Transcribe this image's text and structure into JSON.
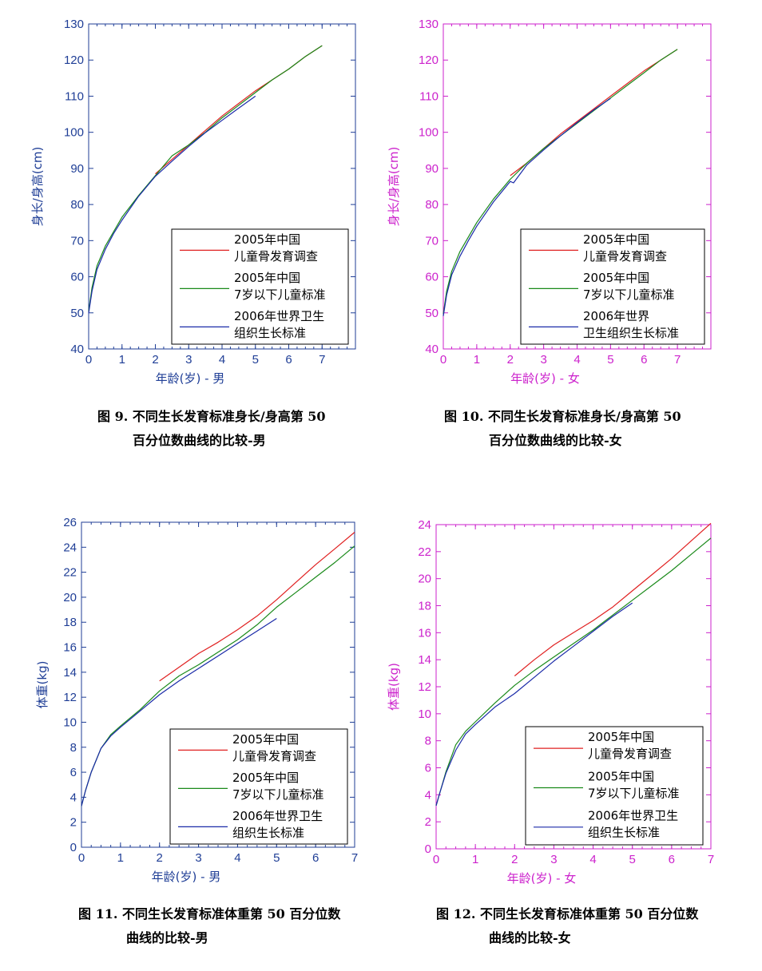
{
  "colors": {
    "red": "#e02020",
    "green": "#1a8a1a",
    "blue": "#1a2aa8",
    "male_axis": "#1f3e96",
    "female_axis": "#cc22cc"
  },
  "chart_data": [
    {
      "type": "line",
      "gender": "male",
      "ylabel": "身长/身高(cm)",
      "xlabel": "年龄(岁) - 男",
      "xlim": [
        0,
        8
      ],
      "ylim": [
        40,
        130
      ],
      "xticks": [
        0,
        1,
        2,
        3,
        4,
        5,
        6,
        7
      ],
      "yticks": [
        40,
        50,
        60,
        70,
        80,
        90,
        100,
        110,
        120,
        130
      ],
      "caption": [
        "图 9. 不同生长发育标准身长/身高第 50",
        "百分位数曲线的比较-男"
      ],
      "legend": [
        [
          "2005年中国",
          "儿童骨发育调查"
        ],
        [
          "2005年中国",
          "7岁以下儿童标准"
        ],
        [
          "2006年世界卫生",
          "组织生长标准"
        ]
      ],
      "series": [
        {
          "color": "red",
          "x": [
            2,
            2.5,
            3,
            3.5,
            4,
            4.5,
            5,
            5.5,
            6,
            6.5,
            7
          ],
          "y": [
            88.5,
            92.5,
            96.5,
            100.5,
            104.5,
            108,
            111.5,
            114.5,
            117.5,
            121,
            124
          ]
        },
        {
          "color": "green",
          "x": [
            0,
            0.1,
            0.25,
            0.5,
            0.75,
            1,
            1.5,
            2,
            2.5,
            3,
            3.5,
            4,
            4.5,
            5,
            5.5,
            6,
            6.5,
            7
          ],
          "y": [
            50.4,
            57,
            63,
            68.5,
            72.5,
            76.5,
            82.5,
            88,
            93.5,
            96.5,
            100,
            104,
            107.5,
            111,
            114.5,
            117.5,
            121,
            124
          ]
        },
        {
          "color": "blue",
          "x": [
            0,
            0.1,
            0.25,
            0.5,
            0.75,
            1,
            1.5,
            2,
            2.5,
            3,
            3.5,
            4,
            4.5,
            5
          ],
          "y": [
            49.9,
            56,
            62,
            67.6,
            72,
            75.7,
            82.3,
            87.8,
            92,
            96.1,
            99.9,
            103.3,
            106.7,
            110
          ]
        }
      ]
    },
    {
      "type": "line",
      "gender": "female",
      "ylabel": "身长/身高(cm)",
      "xlabel": "年龄(岁) - 女",
      "xlim": [
        0,
        8
      ],
      "ylim": [
        40,
        130
      ],
      "xticks": [
        0,
        1,
        2,
        3,
        4,
        5,
        6,
        7
      ],
      "yticks": [
        40,
        50,
        60,
        70,
        80,
        90,
        100,
        110,
        120,
        130
      ],
      "caption": [
        "图 10. 不同生长发育标准身长/身高第 50",
        "百分位数曲线的比较-女"
      ],
      "legend": [
        [
          "2005年中国",
          "儿童骨发育调查"
        ],
        [
          "2005年中国",
          "7岁以下儿童标准"
        ],
        [
          "2006年世界",
          "卫生组织生长标准"
        ]
      ],
      "series": [
        {
          "color": "red",
          "x": [
            2,
            2.5,
            3,
            3.5,
            4,
            4.5,
            5,
            5.5,
            6,
            6.5,
            7
          ],
          "y": [
            88,
            91.5,
            95.5,
            99.5,
            103,
            106.5,
            110,
            113.5,
            117,
            120,
            123
          ]
        },
        {
          "color": "green",
          "x": [
            0,
            0.1,
            0.25,
            0.5,
            0.75,
            1,
            1.5,
            2,
            2.5,
            3,
            3.5,
            4,
            4.5,
            5,
            5.5,
            6,
            6.5,
            7
          ],
          "y": [
            49.7,
            56,
            61.5,
            67,
            71,
            75,
            81.5,
            87,
            91.5,
            95.5,
            99,
            102.5,
            106,
            109.5,
            113,
            116.5,
            120,
            123
          ]
        },
        {
          "color": "blue",
          "x": [
            0,
            0.1,
            0.25,
            0.5,
            0.75,
            1,
            1.5,
            2,
            2.1,
            2.5,
            3,
            3.5,
            4,
            4.5,
            5
          ],
          "y": [
            49.1,
            55,
            60.5,
            65.7,
            70,
            74,
            80.7,
            86.4,
            86,
            91,
            95.1,
            99,
            102.7,
            106.2,
            109.4
          ]
        }
      ]
    },
    {
      "type": "line",
      "gender": "male",
      "ylabel": "体重(kg)",
      "xlabel": "年龄(岁) - 男",
      "xlim": [
        0,
        7
      ],
      "ylim": [
        0,
        26
      ],
      "xticks": [
        0,
        1,
        2,
        3,
        4,
        5,
        6,
        7
      ],
      "yticks": [
        0,
        2,
        4,
        6,
        8,
        10,
        12,
        14,
        16,
        18,
        20,
        22,
        24,
        26
      ],
      "caption": [
        "图 11. 不同生长发育标准体重第 50 百分位数",
        "曲线的比较-男"
      ],
      "legend": [
        [
          "2005年中国",
          "儿童骨发育调查"
        ],
        [
          "2005年中国",
          "7岁以下儿童标准"
        ],
        [
          "2006年世界卫生",
          "组织生长标准"
        ]
      ],
      "series": [
        {
          "color": "red",
          "x": [
            2,
            2.5,
            3,
            3.5,
            4,
            4.5,
            5,
            5.5,
            6,
            6.5,
            7
          ],
          "y": [
            13.3,
            14.4,
            15.5,
            16.4,
            17.4,
            18.5,
            19.8,
            21.2,
            22.6,
            23.9,
            25.2
          ]
        },
        {
          "color": "green",
          "x": [
            0,
            0.1,
            0.25,
            0.5,
            0.75,
            1,
            1.5,
            2,
            2.5,
            3,
            3.5,
            4,
            4.5,
            5,
            5.5,
            6,
            6.5,
            7
          ],
          "y": [
            3.3,
            4.5,
            6,
            7.9,
            9,
            9.7,
            11,
            12.5,
            13.7,
            14.6,
            15.6,
            16.6,
            17.8,
            19.2,
            20.4,
            21.6,
            22.8,
            24.1
          ]
        },
        {
          "color": "blue",
          "x": [
            0,
            0.1,
            0.25,
            0.5,
            0.75,
            1,
            1.5,
            2,
            2.5,
            3,
            3.5,
            4,
            4.5,
            5
          ],
          "y": [
            3.3,
            4.5,
            6,
            7.9,
            8.9,
            9.6,
            10.9,
            12.2,
            13.3,
            14.3,
            15.3,
            16.3,
            17.3,
            18.3
          ]
        }
      ]
    },
    {
      "type": "line",
      "gender": "female",
      "ylabel": "体重(kg)",
      "xlabel": "年龄(岁) - 女",
      "xlim": [
        0,
        7
      ],
      "ylim": [
        0,
        24
      ],
      "xticks": [
        0,
        1,
        2,
        3,
        4,
        5,
        6,
        7
      ],
      "yticks": [
        0,
        2,
        4,
        6,
        8,
        10,
        12,
        14,
        16,
        18,
        20,
        22,
        24
      ],
      "caption": [
        "图 12. 不同生长发育标准体重第 50 百分位数",
        "曲线的比较-女"
      ],
      "legend": [
        [
          "2005年中国",
          "儿童骨发育调查"
        ],
        [
          "2005年中国",
          "7岁以下儿童标准"
        ],
        [
          "2006年世界卫生",
          "组织生长标准"
        ]
      ],
      "series": [
        {
          "color": "red",
          "x": [
            2,
            2.5,
            3,
            3.5,
            4,
            4.5,
            5,
            5.5,
            6,
            6.5,
            7
          ],
          "y": [
            12.8,
            14,
            15.1,
            16,
            16.9,
            17.9,
            19.1,
            20.3,
            21.5,
            22.8,
            24.1
          ]
        },
        {
          "color": "green",
          "x": [
            0,
            0.1,
            0.25,
            0.5,
            0.75,
            1,
            1.5,
            2,
            2.5,
            3,
            3.5,
            4,
            4.5,
            5,
            5.5,
            6,
            6.5,
            7
          ],
          "y": [
            3.2,
            4.2,
            5.7,
            7.7,
            8.7,
            9.4,
            10.8,
            12.1,
            13.2,
            14.2,
            15.2,
            16.2,
            17.3,
            18.4,
            19.5,
            20.6,
            21.8,
            23
          ]
        },
        {
          "color": "blue",
          "x": [
            0,
            0.1,
            0.25,
            0.5,
            0.75,
            1,
            1.5,
            2,
            2.5,
            3,
            3.5,
            4,
            4.5,
            5
          ],
          "y": [
            3.2,
            4.2,
            5.6,
            7.3,
            8.5,
            9.2,
            10.5,
            11.5,
            12.7,
            13.9,
            15,
            16.1,
            17.2,
            18.2
          ]
        }
      ]
    }
  ]
}
